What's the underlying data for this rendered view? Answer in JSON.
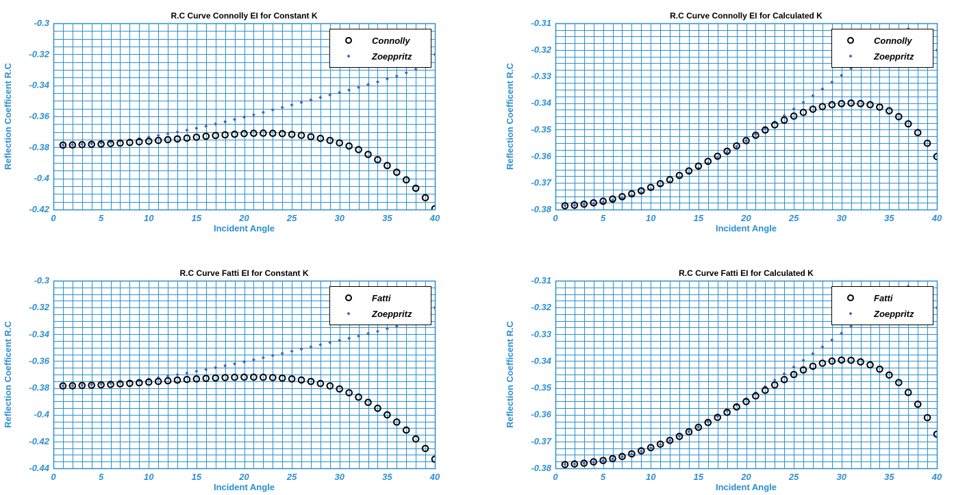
{
  "chart_data": [
    {
      "type": "scatter",
      "title": "R.C Curve Connolly EI for Constant K",
      "xlabel": "Incident Angle",
      "ylabel": "Reflection Coefficent R.C",
      "xlim": [
        0,
        40
      ],
      "ylim": [
        -0.42,
        -0.3
      ],
      "xticks": [
        0,
        5,
        10,
        15,
        20,
        25,
        30,
        35,
        40
      ],
      "xtick_labels": [
        "0",
        "5",
        "10",
        "15",
        "20",
        "25",
        "30",
        "35",
        "40"
      ],
      "yticks": [
        -0.3,
        -0.32,
        -0.34,
        -0.36,
        -0.38,
        -0.4,
        -0.42
      ],
      "ytick_labels": [
        "-0.3",
        "-0.32",
        "-0.34",
        "-0.36",
        "-0.38",
        "-0.4",
        "-0.42"
      ],
      "grid": true,
      "legend_position": "top-right",
      "x": [
        1,
        2,
        3,
        4,
        5,
        6,
        7,
        8,
        9,
        10,
        11,
        12,
        13,
        14,
        15,
        16,
        17,
        18,
        19,
        20,
        21,
        22,
        23,
        24,
        25,
        26,
        27,
        28,
        29,
        30,
        31,
        32,
        33,
        34,
        35,
        36,
        37,
        38,
        39,
        40
      ],
      "series": [
        {
          "name": "Connolly",
          "marker": "circle",
          "color": "#000000",
          "values": [
            -0.3785,
            -0.3784,
            -0.3782,
            -0.378,
            -0.3778,
            -0.3775,
            -0.3772,
            -0.3768,
            -0.3764,
            -0.376,
            -0.3755,
            -0.375,
            -0.3745,
            -0.374,
            -0.3734,
            -0.3728,
            -0.3723,
            -0.3719,
            -0.3715,
            -0.3711,
            -0.3709,
            -0.3708,
            -0.3709,
            -0.3711,
            -0.3716,
            -0.3722,
            -0.3731,
            -0.3742,
            -0.3755,
            -0.3771,
            -0.3791,
            -0.3814,
            -0.3845,
            -0.3879,
            -0.3917,
            -0.396,
            -0.4009,
            -0.4063,
            -0.4124,
            -0.4195
          ]
        },
        {
          "name": "Zoeppritz",
          "marker": "diamond",
          "color": "#4a5fb8",
          "values": [
            -0.3785,
            -0.3783,
            -0.378,
            -0.3776,
            -0.3771,
            -0.3765,
            -0.3758,
            -0.3751,
            -0.3742,
            -0.3733,
            -0.3723,
            -0.3712,
            -0.3701,
            -0.3689,
            -0.3676,
            -0.3663,
            -0.3649,
            -0.3635,
            -0.362,
            -0.3605,
            -0.359,
            -0.3574,
            -0.3558,
            -0.3542,
            -0.3526,
            -0.351,
            -0.3494,
            -0.3478,
            -0.3462,
            -0.3446,
            -0.343,
            -0.3413,
            -0.3395,
            -0.3378,
            -0.3358,
            -0.334,
            -0.3319,
            -0.3296,
            -0.3272,
            -0.3201
          ]
        }
      ]
    },
    {
      "type": "scatter",
      "title": "R.C Curve Connolly EI for Calculated K",
      "xlabel": "Incident Angle",
      "ylabel": "Reflection Coefficent R.C",
      "xlim": [
        0,
        40
      ],
      "ylim": [
        -0.38,
        -0.31
      ],
      "xticks": [
        0,
        5,
        10,
        15,
        20,
        25,
        30,
        35,
        40
      ],
      "xtick_labels": [
        "0",
        "5",
        "10",
        "15",
        "20",
        "25",
        "30",
        "35",
        "40"
      ],
      "yticks": [
        -0.31,
        -0.32,
        -0.33,
        -0.34,
        -0.35,
        -0.36,
        -0.37,
        -0.38
      ],
      "ytick_labels": [
        "-0.31",
        "-0.32",
        "-0.33",
        "-0.34",
        "-0.35",
        "-0.36",
        "-0.37",
        "-0.38"
      ],
      "grid": true,
      "legend_position": "top-right",
      "x": [
        1,
        2,
        3,
        4,
        5,
        6,
        7,
        8,
        9,
        10,
        11,
        12,
        13,
        14,
        15,
        16,
        17,
        18,
        19,
        20,
        21,
        22,
        23,
        24,
        25,
        26,
        27,
        28,
        29,
        30,
        31,
        32,
        33,
        34,
        35,
        36,
        37,
        38,
        39,
        40
      ],
      "series": [
        {
          "name": "Connolly",
          "marker": "circle",
          "color": "#000000",
          "values": [
            -0.3786,
            -0.3784,
            -0.378,
            -0.3775,
            -0.3769,
            -0.3761,
            -0.3752,
            -0.3741,
            -0.373,
            -0.3717,
            -0.3703,
            -0.3688,
            -0.3672,
            -0.3655,
            -0.3637,
            -0.3619,
            -0.36,
            -0.3581,
            -0.3561,
            -0.3541,
            -0.3521,
            -0.3501,
            -0.3482,
            -0.3464,
            -0.3449,
            -0.3435,
            -0.3423,
            -0.3413,
            -0.3406,
            -0.3402,
            -0.34,
            -0.3402,
            -0.3406,
            -0.3415,
            -0.3429,
            -0.3451,
            -0.3478,
            -0.3511,
            -0.3551,
            -0.3601
          ]
        },
        {
          "name": "Zoeppritz",
          "marker": "diamond",
          "color": "#4a5fb8",
          "values": [
            -0.3785,
            -0.3784,
            -0.3781,
            -0.3777,
            -0.3772,
            -0.3765,
            -0.3757,
            -0.3747,
            -0.3736,
            -0.3724,
            -0.3711,
            -0.3696,
            -0.368,
            -0.3663,
            -0.3645,
            -0.3626,
            -0.3606,
            -0.3585,
            -0.3563,
            -0.3541,
            -0.3518,
            -0.3495,
            -0.3471,
            -0.3447,
            -0.3422,
            -0.3397,
            -0.3372,
            -0.3347,
            -0.3321,
            -0.3296,
            -0.327,
            -0.3245,
            -0.3219,
            -0.3194,
            -0.3169,
            -0.3145,
            -0.3121,
            -0.3098,
            -0.3075,
            -0.3201
          ]
        }
      ]
    },
    {
      "type": "scatter",
      "title": "R.C Curve Fatti EI for Constant K",
      "xlabel": "Incident Angle",
      "ylabel": "Reflection Coefficent R.C",
      "xlim": [
        0,
        40
      ],
      "ylim": [
        -0.44,
        -0.3
      ],
      "xticks": [
        0,
        5,
        10,
        15,
        20,
        25,
        30,
        35,
        40
      ],
      "xtick_labels": [
        "0",
        "5",
        "10",
        "15",
        "20",
        "25",
        "30",
        "35",
        "40"
      ],
      "yticks": [
        -0.3,
        -0.32,
        -0.34,
        -0.36,
        -0.38,
        -0.4,
        -0.42,
        -0.44
      ],
      "ytick_labels": [
        "-0.3",
        "-0.32",
        "-0.34",
        "-0.36",
        "-0.38",
        "-0.4",
        "-0.42",
        "-0.44"
      ],
      "grid": true,
      "legend_position": "top-right",
      "x": [
        1,
        2,
        3,
        4,
        5,
        6,
        7,
        8,
        9,
        10,
        11,
        12,
        13,
        14,
        15,
        16,
        17,
        18,
        19,
        20,
        21,
        22,
        23,
        24,
        25,
        26,
        27,
        28,
        29,
        30,
        31,
        32,
        33,
        34,
        35,
        36,
        37,
        38,
        39,
        40
      ],
      "series": [
        {
          "name": "Fatti",
          "marker": "circle",
          "color": "#000000",
          "values": [
            -0.3785,
            -0.3784,
            -0.3782,
            -0.378,
            -0.3777,
            -0.3774,
            -0.377,
            -0.3766,
            -0.3762,
            -0.3757,
            -0.3752,
            -0.3747,
            -0.3742,
            -0.3737,
            -0.3733,
            -0.3729,
            -0.3726,
            -0.3723,
            -0.3721,
            -0.372,
            -0.372,
            -0.3721,
            -0.3723,
            -0.3727,
            -0.3733,
            -0.3741,
            -0.3752,
            -0.3767,
            -0.3785,
            -0.3808,
            -0.3836,
            -0.3869,
            -0.3908,
            -0.3952,
            -0.4001,
            -0.4055,
            -0.4115,
            -0.4181,
            -0.4252,
            -0.4332
          ]
        },
        {
          "name": "Zoeppritz",
          "marker": "diamond",
          "color": "#4a5fb8",
          "values": [
            -0.3785,
            -0.3783,
            -0.378,
            -0.3776,
            -0.3771,
            -0.3765,
            -0.3758,
            -0.3751,
            -0.3742,
            -0.3733,
            -0.3723,
            -0.3712,
            -0.3701,
            -0.3689,
            -0.3676,
            -0.3663,
            -0.3649,
            -0.3635,
            -0.362,
            -0.3605,
            -0.359,
            -0.3574,
            -0.3558,
            -0.3542,
            -0.3526,
            -0.351,
            -0.3494,
            -0.3478,
            -0.3462,
            -0.3446,
            -0.343,
            -0.3413,
            -0.3395,
            -0.3378,
            -0.3358,
            -0.334,
            -0.3319,
            -0.3296,
            -0.3272,
            -0.3201
          ]
        }
      ]
    },
    {
      "type": "scatter",
      "title": "R.C Curve Fatti EI for Calculated K",
      "xlabel": "Incident Angle",
      "ylabel": "Reflection Coefficent R.C",
      "xlim": [
        0,
        40
      ],
      "ylim": [
        -0.38,
        -0.31
      ],
      "xticks": [
        0,
        5,
        10,
        15,
        20,
        25,
        30,
        35,
        40
      ],
      "xtick_labels": [
        "0",
        "5",
        "10",
        "15",
        "20",
        "25",
        "30",
        "35",
        "40"
      ],
      "yticks": [
        -0.31,
        -0.32,
        -0.33,
        -0.34,
        -0.35,
        -0.36,
        -0.37,
        -0.38
      ],
      "ytick_labels": [
        "-0.31",
        "-0.32",
        "-0.33",
        "-0.34",
        "-0.35",
        "-0.36",
        "-0.37",
        "-0.38"
      ],
      "grid": true,
      "legend_position": "top-right",
      "x": [
        1,
        2,
        3,
        4,
        5,
        6,
        7,
        8,
        9,
        10,
        11,
        12,
        13,
        14,
        15,
        16,
        17,
        18,
        19,
        20,
        21,
        22,
        23,
        24,
        25,
        26,
        27,
        28,
        29,
        30,
        31,
        32,
        33,
        34,
        35,
        36,
        37,
        38,
        39,
        40
      ],
      "series": [
        {
          "name": "Fatti",
          "marker": "circle",
          "color": "#000000",
          "values": [
            -0.3786,
            -0.3784,
            -0.3781,
            -0.3776,
            -0.3771,
            -0.3764,
            -0.3756,
            -0.3746,
            -0.3735,
            -0.3723,
            -0.371,
            -0.3696,
            -0.3681,
            -0.3664,
            -0.3647,
            -0.3629,
            -0.361,
            -0.3591,
            -0.3571,
            -0.3551,
            -0.353,
            -0.3509,
            -0.3489,
            -0.3469,
            -0.345,
            -0.3433,
            -0.3419,
            -0.3408,
            -0.34,
            -0.3396,
            -0.3397,
            -0.3403,
            -0.3414,
            -0.343,
            -0.3452,
            -0.348,
            -0.3517,
            -0.3561,
            -0.3611,
            -0.3673
          ]
        },
        {
          "name": "Zoeppritz",
          "marker": "diamond",
          "color": "#4a5fb8",
          "values": [
            -0.3785,
            -0.3784,
            -0.3781,
            -0.3777,
            -0.3772,
            -0.3765,
            -0.3757,
            -0.3747,
            -0.3736,
            -0.3724,
            -0.3711,
            -0.3696,
            -0.368,
            -0.3663,
            -0.3645,
            -0.3626,
            -0.3606,
            -0.3585,
            -0.3563,
            -0.3541,
            -0.3518,
            -0.3495,
            -0.3471,
            -0.3447,
            -0.3422,
            -0.3397,
            -0.3372,
            -0.3347,
            -0.3321,
            -0.3296,
            -0.327,
            -0.3245,
            -0.3219,
            -0.3194,
            -0.3169,
            -0.3145,
            -0.3121,
            -0.3098,
            -0.3075,
            -0.3201
          ]
        }
      ]
    }
  ]
}
